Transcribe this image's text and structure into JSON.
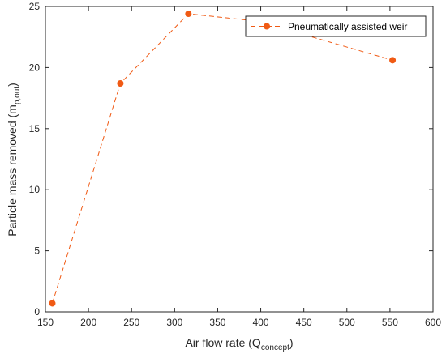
{
  "chart_data": {
    "type": "line",
    "xlabel": {
      "main": "Air flow rate (Q",
      "sub": "concept",
      "end": ")"
    },
    "ylabel": {
      "main": "Particle mass removed (m",
      "sub": "p,out",
      "end": ")"
    },
    "xlim": [
      150,
      600
    ],
    "ylim": [
      0,
      25
    ],
    "xticks": [
      150,
      200,
      250,
      300,
      350,
      400,
      450,
      500,
      550,
      600
    ],
    "yticks": [
      0,
      5,
      10,
      15,
      20,
      25
    ],
    "grid": false,
    "legend_position": "top-right",
    "series": [
      {
        "name": "Pneumatically assisted weir",
        "color": "#F05A14",
        "line_style": "dashed",
        "marker": "circle",
        "x": [
          158,
          237,
          316,
          396,
          553
        ],
        "y": [
          0.7,
          18.7,
          24.4,
          23.8,
          20.6
        ]
      }
    ]
  }
}
